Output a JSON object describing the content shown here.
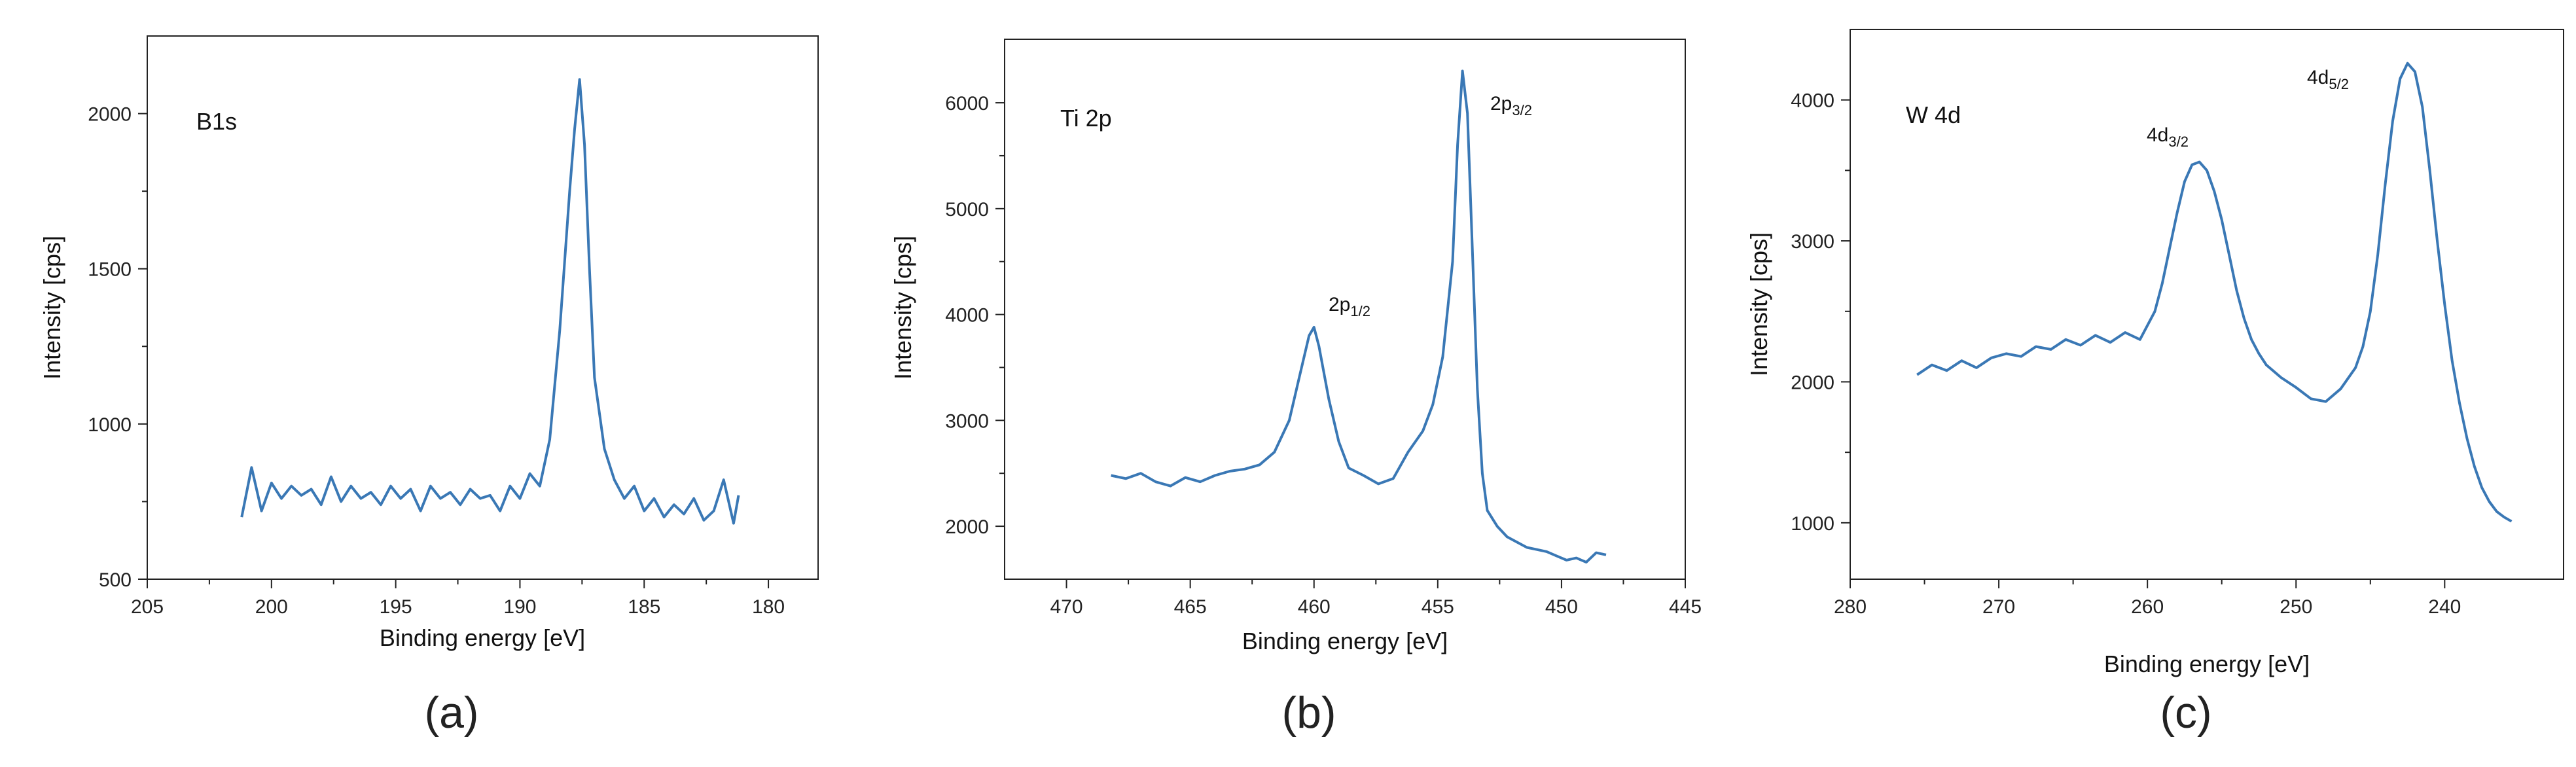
{
  "chart_data": [
    {
      "type": "line",
      "panel": "(a)",
      "title": "B1s",
      "xlabel": "Binding energy [eV]",
      "ylabel": "Intensity [cps]",
      "xlim": [
        205,
        178
      ],
      "ylim": [
        500,
        2250
      ],
      "xticks": [
        205,
        200,
        195,
        190,
        185,
        180
      ],
      "yticks": [
        500,
        1000,
        1500,
        2000
      ],
      "color": "#3a78b5",
      "x": [
        201.2,
        200.8,
        200.4,
        200.0,
        199.6,
        199.2,
        198.8,
        198.4,
        198.0,
        197.6,
        197.2,
        196.8,
        196.4,
        196.0,
        195.6,
        195.2,
        194.8,
        194.4,
        194.0,
        193.6,
        193.2,
        192.8,
        192.4,
        192.0,
        191.6,
        191.2,
        190.8,
        190.4,
        190.0,
        189.6,
        189.2,
        188.8,
        188.4,
        188.0,
        187.8,
        187.6,
        187.4,
        187.2,
        187.0,
        186.6,
        186.2,
        185.8,
        185.4,
        185.0,
        184.6,
        184.2,
        183.8,
        183.4,
        183.0,
        182.6,
        182.2,
        181.8,
        181.4,
        181.2
      ],
      "values": [
        700,
        860,
        720,
        810,
        760,
        800,
        770,
        790,
        740,
        830,
        750,
        800,
        760,
        780,
        740,
        800,
        760,
        790,
        720,
        800,
        760,
        780,
        740,
        790,
        760,
        770,
        720,
        800,
        760,
        840,
        800,
        950,
        1300,
        1750,
        1950,
        2110,
        1900,
        1500,
        1150,
        920,
        820,
        760,
        800,
        720,
        760,
        700,
        740,
        710,
        760,
        690,
        720,
        820,
        680,
        770
      ]
    },
    {
      "type": "line",
      "panel": "(b)",
      "title": "Ti 2p",
      "xlabel": "Binding energy [eV]",
      "ylabel": "Intensity [cps]",
      "xlim": [
        472.5,
        445
      ],
      "ylim": [
        1500,
        6600
      ],
      "xticks": [
        470,
        465,
        460,
        455,
        450,
        445
      ],
      "yticks": [
        2000,
        3000,
        4000,
        5000,
        6000
      ],
      "color": "#3a78b5",
      "x": [
        468.2,
        467.6,
        467.0,
        466.4,
        465.8,
        465.2,
        464.6,
        464.0,
        463.4,
        462.8,
        462.2,
        461.6,
        461.0,
        460.6,
        460.2,
        460.0,
        459.8,
        459.4,
        459.0,
        458.6,
        458.0,
        457.4,
        456.8,
        456.2,
        455.6,
        455.2,
        454.8,
        454.4,
        454.2,
        454.0,
        453.8,
        453.6,
        453.4,
        453.2,
        453.0,
        452.6,
        452.2,
        451.8,
        451.4,
        451.0,
        450.6,
        450.2,
        449.8,
        449.4,
        449.0,
        448.6,
        448.2
      ],
      "values": [
        2480,
        2450,
        2500,
        2420,
        2380,
        2460,
        2420,
        2480,
        2520,
        2540,
        2580,
        2700,
        3000,
        3400,
        3800,
        3880,
        3700,
        3200,
        2800,
        2550,
        2480,
        2400,
        2450,
        2700,
        2900,
        3150,
        3600,
        4500,
        5600,
        6300,
        5900,
        4600,
        3300,
        2500,
        2150,
        2000,
        1900,
        1850,
        1800,
        1780,
        1760,
        1720,
        1680,
        1700,
        1660,
        1750,
        1730
      ]
    },
    {
      "type": "line",
      "panel": "(c)",
      "title": "W 4d",
      "xlabel": "Binding energy [eV]",
      "ylabel": "Intensity [cps]",
      "xlim": [
        280,
        232
      ],
      "ylim": [
        600,
        4500
      ],
      "xticks": [
        280,
        270,
        260,
        250,
        240
      ],
      "yticks": [
        1000,
        2000,
        3000,
        4000
      ],
      "color": "#3a78b5",
      "x": [
        275.5,
        274.5,
        273.5,
        272.5,
        271.5,
        270.5,
        269.5,
        268.5,
        267.5,
        266.5,
        265.5,
        264.5,
        263.5,
        262.5,
        261.5,
        260.5,
        259.5,
        259.0,
        258.5,
        258.0,
        257.5,
        257.0,
        256.5,
        256.0,
        255.5,
        255.0,
        254.5,
        254.0,
        253.5,
        253.0,
        252.5,
        252.0,
        251.0,
        250.0,
        249.0,
        248.0,
        247.0,
        246.0,
        245.5,
        245.0,
        244.5,
        244.0,
        243.5,
        243.0,
        242.5,
        242.0,
        241.5,
        241.0,
        240.5,
        240.0,
        239.5,
        239.0,
        238.5,
        238.0,
        237.5,
        237.0,
        236.5,
        236.0,
        235.5
      ],
      "values": [
        2050,
        2120,
        2080,
        2150,
        2100,
        2170,
        2200,
        2180,
        2250,
        2230,
        2300,
        2260,
        2330,
        2280,
        2350,
        2300,
        2500,
        2700,
        2950,
        3200,
        3420,
        3540,
        3560,
        3500,
        3350,
        3150,
        2900,
        2650,
        2450,
        2300,
        2200,
        2120,
        2030,
        1960,
        1880,
        1860,
        1950,
        2100,
        2250,
        2500,
        2900,
        3400,
        3850,
        4150,
        4260,
        4200,
        3950,
        3500,
        3000,
        2550,
        2150,
        1850,
        1600,
        1400,
        1250,
        1150,
        1080,
        1040,
        1010
      ]
    }
  ],
  "annotations": {
    "ti_2p12": "2p",
    "ti_2p12_sub": "1/2",
    "ti_2p32": "2p",
    "ti_2p32_sub": "3/2",
    "w_4d32": "4d",
    "w_4d32_sub": "3/2",
    "w_4d52": "4d",
    "w_4d52_sub": "5/2"
  },
  "captions": [
    "(a)",
    "(b)",
    "(c)"
  ]
}
